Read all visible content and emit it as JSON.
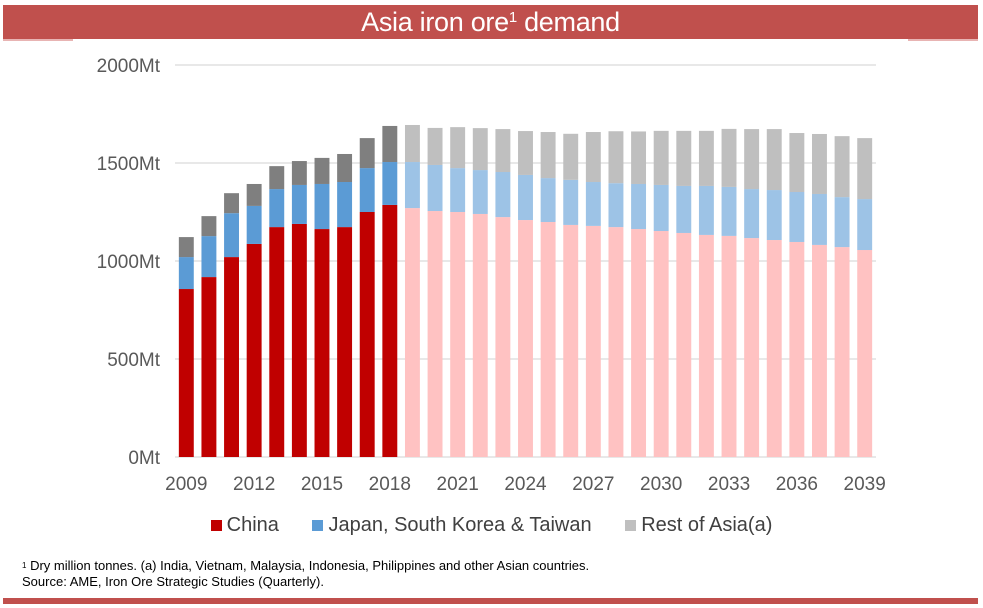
{
  "title": {
    "text": "Asia iron ore",
    "superscript": "1",
    "suffix": " demand"
  },
  "footnote": {
    "line1_marker": "1",
    "line1": "Dry million tonnes. (a) India, Vietnam, Malaysia, Indonesia, Philippines and other Asian countries.",
    "line2": "Source: AME, Iron Ore Strategic Studies (Quarterly)."
  },
  "colors": {
    "title_bar": "#c0504d",
    "china_actual": "#c00000",
    "china_forecast": "#ffc2c2",
    "jskt_actual": "#5b9bd5",
    "jskt_forecast": "#9dc3e6",
    "rest_actual": "#7f7f7f",
    "rest_forecast": "#bfbfbf",
    "gridline": "#d9d9d9"
  },
  "chart_data": {
    "type": "bar",
    "stacked": true,
    "title": "Asia iron ore1 demand",
    "xlabel": "",
    "ylabel": "",
    "ylim": [
      0,
      2000
    ],
    "unit": "Mt",
    "grid": true,
    "legend_position": "bottom",
    "y_ticks": [
      "0Mt",
      "500Mt",
      "1000Mt",
      "1500Mt",
      "2000Mt"
    ],
    "y_tick_values": [
      0,
      500,
      1000,
      1500,
      2000
    ],
    "x_tick_labels": [
      "2009",
      "2012",
      "2015",
      "2018",
      "2021",
      "2024",
      "2027",
      "2030",
      "2033",
      "2036",
      "2039"
    ],
    "forecast_from": 2019,
    "categories": [
      2009,
      2010,
      2011,
      2012,
      2013,
      2014,
      2015,
      2016,
      2017,
      2018,
      2019,
      2020,
      2021,
      2022,
      2023,
      2024,
      2025,
      2026,
      2027,
      2028,
      2029,
      2030,
      2031,
      2032,
      2033,
      2034,
      2035,
      2036,
      2037,
      2038,
      2039
    ],
    "series": [
      {
        "name": "China",
        "values": [
          857,
          918,
          1020,
          1087,
          1173,
          1189,
          1163,
          1173,
          1250,
          1286,
          1270,
          1255,
          1250,
          1240,
          1224,
          1209,
          1199,
          1184,
          1179,
          1173,
          1163,
          1153,
          1143,
          1133,
          1128,
          1117,
          1107,
          1097,
          1082,
          1071,
          1056
        ]
      },
      {
        "name": "Japan, South Korea & Taiwan",
        "values": [
          163,
          209,
          224,
          194,
          194,
          199,
          230,
          230,
          224,
          219,
          235,
          235,
          224,
          224,
          230,
          230,
          224,
          230,
          224,
          224,
          230,
          235,
          240,
          250,
          250,
          250,
          255,
          255,
          260,
          255,
          260
        ]
      },
      {
        "name": "Rest of Asia(a)",
        "values": [
          102,
          102,
          102,
          112,
          117,
          122,
          133,
          143,
          153,
          184,
          189,
          189,
          209,
          214,
          219,
          224,
          235,
          235,
          255,
          265,
          268,
          276,
          281,
          281,
          296,
          306,
          311,
          301,
          306,
          311,
          311
        ]
      }
    ]
  }
}
